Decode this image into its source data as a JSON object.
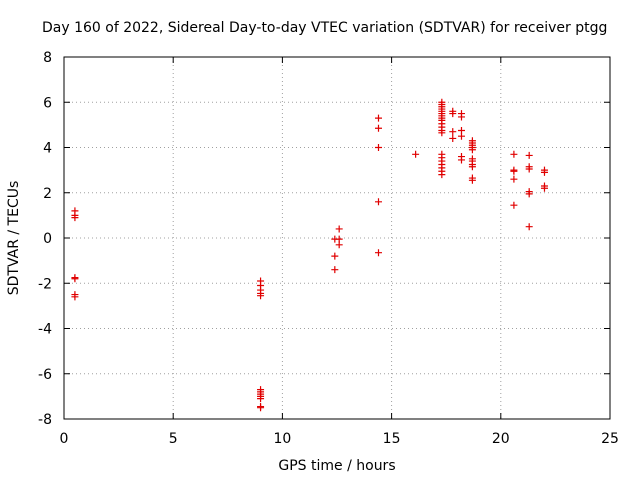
{
  "chart_data": {
    "type": "scatter",
    "title": "Day 160 of 2022, Sidereal Day-to-day VTEC variation (SDTVAR) for receiver ptgg",
    "xlabel": "GPS time / hours",
    "ylabel": "SDTVAR / TECUs",
    "xlim": [
      0,
      25
    ],
    "ylim": [
      -8,
      8
    ],
    "xticks": [
      0,
      5,
      10,
      15,
      20,
      25
    ],
    "yticks": [
      -8,
      -6,
      -4,
      -2,
      0,
      2,
      4,
      6,
      8
    ],
    "grid": true,
    "marker": "+",
    "color": "#e00000",
    "series": [
      {
        "name": "SDTVAR",
        "points": [
          [
            0.5,
            1.2
          ],
          [
            0.5,
            1.0
          ],
          [
            0.5,
            0.9
          ],
          [
            0.5,
            -1.75
          ],
          [
            0.5,
            -1.8
          ],
          [
            0.5,
            -2.5
          ],
          [
            0.5,
            -2.6
          ],
          [
            9.0,
            -1.9
          ],
          [
            9.0,
            -2.1
          ],
          [
            9.0,
            -2.3
          ],
          [
            9.0,
            -2.45
          ],
          [
            9.0,
            -2.55
          ],
          [
            9.0,
            -6.7
          ],
          [
            9.0,
            -6.8
          ],
          [
            9.0,
            -6.9
          ],
          [
            9.0,
            -7.0
          ],
          [
            9.0,
            -7.1
          ],
          [
            9.0,
            -7.45
          ],
          [
            9.0,
            -7.5
          ],
          [
            12.4,
            -0.05
          ],
          [
            12.4,
            -0.8
          ],
          [
            12.4,
            -1.4
          ],
          [
            12.6,
            0.4
          ],
          [
            12.6,
            -0.05
          ],
          [
            12.6,
            -0.3
          ],
          [
            14.4,
            5.3
          ],
          [
            14.4,
            4.85
          ],
          [
            14.4,
            4.0
          ],
          [
            14.4,
            1.6
          ],
          [
            14.4,
            -0.65
          ],
          [
            16.1,
            3.7
          ],
          [
            17.3,
            6.0
          ],
          [
            17.3,
            5.9
          ],
          [
            17.3,
            5.8
          ],
          [
            17.3,
            5.7
          ],
          [
            17.3,
            5.6
          ],
          [
            17.3,
            5.5
          ],
          [
            17.3,
            5.4
          ],
          [
            17.3,
            5.3
          ],
          [
            17.3,
            5.2
          ],
          [
            17.3,
            5.05
          ],
          [
            17.3,
            4.9
          ],
          [
            17.3,
            4.75
          ],
          [
            17.3,
            4.65
          ],
          [
            17.3,
            3.7
          ],
          [
            17.3,
            3.55
          ],
          [
            17.3,
            3.4
          ],
          [
            17.3,
            3.25
          ],
          [
            17.3,
            3.1
          ],
          [
            17.3,
            2.95
          ],
          [
            17.3,
            2.8
          ],
          [
            17.8,
            5.6
          ],
          [
            17.8,
            5.5
          ],
          [
            17.8,
            4.7
          ],
          [
            17.8,
            4.4
          ],
          [
            18.2,
            5.5
          ],
          [
            18.2,
            5.35
          ],
          [
            18.2,
            4.75
          ],
          [
            18.2,
            4.5
          ],
          [
            18.2,
            3.6
          ],
          [
            18.2,
            3.45
          ],
          [
            18.7,
            4.3
          ],
          [
            18.7,
            4.2
          ],
          [
            18.7,
            4.1
          ],
          [
            18.7,
            4.0
          ],
          [
            18.7,
            3.9
          ],
          [
            18.7,
            3.5
          ],
          [
            18.7,
            3.4
          ],
          [
            18.7,
            3.25
          ],
          [
            18.7,
            3.15
          ],
          [
            18.7,
            2.65
          ],
          [
            18.7,
            2.55
          ],
          [
            20.6,
            3.7
          ],
          [
            20.6,
            3.0
          ],
          [
            20.6,
            2.95
          ],
          [
            20.6,
            2.6
          ],
          [
            20.6,
            1.45
          ],
          [
            21.3,
            3.65
          ],
          [
            21.3,
            3.15
          ],
          [
            21.3,
            3.05
          ],
          [
            21.3,
            2.05
          ],
          [
            21.3,
            1.95
          ],
          [
            21.3,
            0.5
          ],
          [
            22.0,
            3.0
          ],
          [
            22.0,
            2.9
          ],
          [
            22.0,
            2.3
          ],
          [
            22.0,
            2.2
          ]
        ]
      }
    ]
  }
}
